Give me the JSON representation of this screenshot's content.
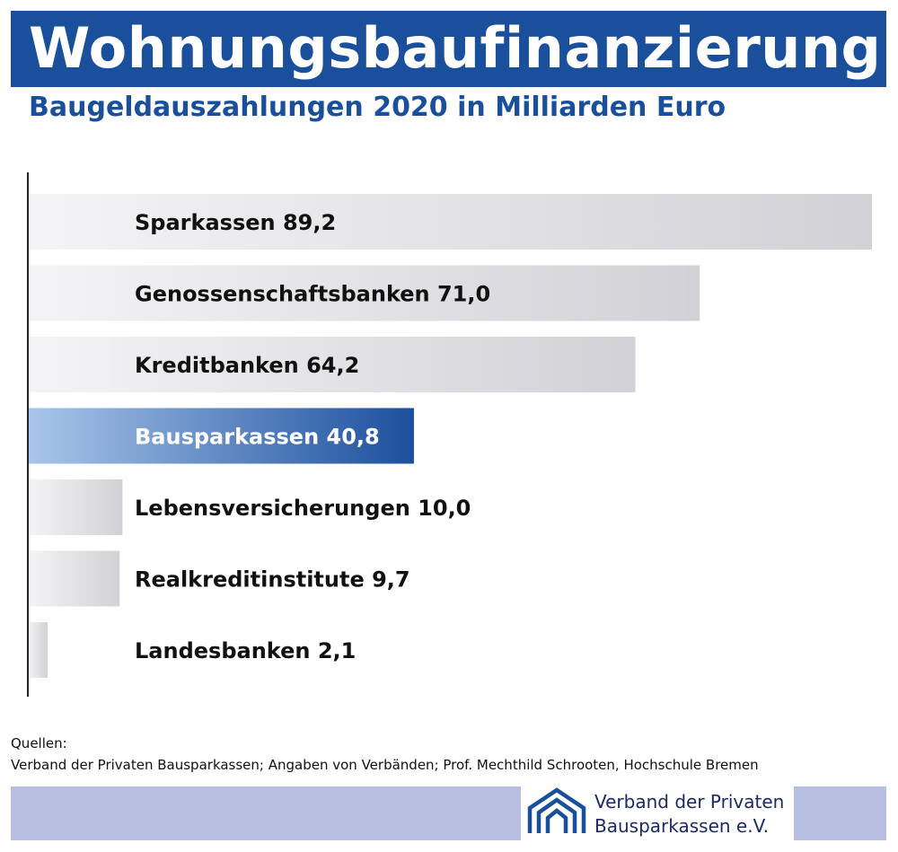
{
  "header": {
    "title": "Wohnungsbaufinanzierung",
    "subtitle": "Baugeldauszahlungen 2020 in Milliarden Euro"
  },
  "chart_data": {
    "type": "bar",
    "orientation": "horizontal",
    "title": "Wohnungsbaufinanzierung",
    "subtitle": "Baugeldauszahlungen 2020 in Milliarden Euro",
    "categories": [
      "Sparkassen",
      "Genossenschaftsbanken",
      "Kreditbanken",
      "Bausparkassen",
      "Lebensversicherungen",
      "Realkreditinstitute",
      "Landesbanken"
    ],
    "values": [
      89.2,
      71.0,
      64.2,
      40.8,
      10.0,
      9.7,
      2.1
    ],
    "value_labels": [
      "89,2",
      "71,0",
      "64,2",
      "40,8",
      "10,0",
      "9,7",
      "2,1"
    ],
    "highlight": "Bausparkassen",
    "xlim": [
      0,
      89.2
    ],
    "grid": false,
    "colors": {
      "bar_gray_light": "#f4f4f6",
      "bar_gray_dark": "#d2d2d6",
      "highlight_light": "#a9c6ea",
      "highlight_dark": "#1c4f9e",
      "axis": "#222222"
    }
  },
  "sources": {
    "heading": "Quellen:",
    "text": "Verband der Privaten Bausparkassen; Angaben von Verbänden; Prof. Mechthild Schrooten, Hochschule Bremen"
  },
  "footer": {
    "logo_icon": "house-roofs-icon",
    "logo_line1": "Verband der Privaten",
    "logo_line2": "Bausparkassen e.V.",
    "band_color": "#b8bfe0",
    "brand_color": "#1a4f9c"
  }
}
